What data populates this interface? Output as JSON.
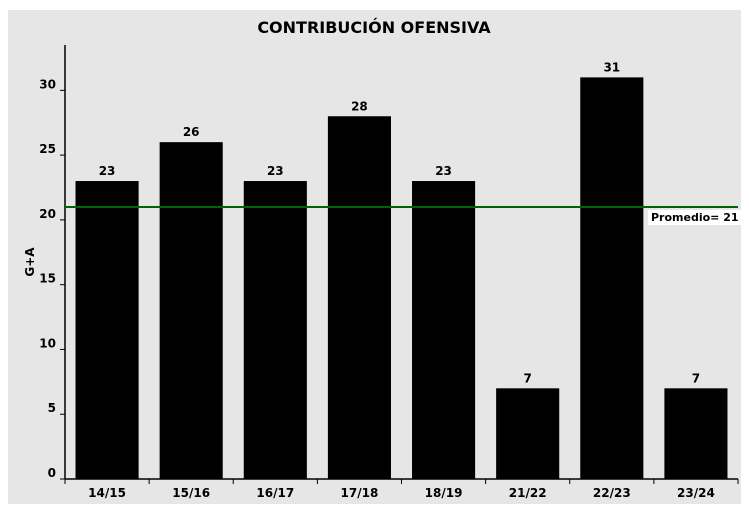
{
  "chart_data": {
    "type": "bar",
    "title": "CONTRIBUCIÓN OFENSIVA",
    "xlabel": "",
    "ylabel": "G+A",
    "categories": [
      "14/15",
      "15/16",
      "16/17",
      "17/18",
      "18/19",
      "21/22",
      "22/23",
      "23/24"
    ],
    "values": [
      23,
      26,
      23,
      28,
      23,
      7,
      31,
      7
    ],
    "ylim": [
      0,
      33.5
    ],
    "yticks": [
      0,
      5,
      10,
      15,
      20,
      25,
      30
    ],
    "grid": false,
    "data_labels": true,
    "reference_line": {
      "value": 21,
      "label": "Promedio= 21"
    },
    "colors": {
      "background": "#e6e6e6",
      "bar": "#000000",
      "reference_line": "#006400",
      "reference_label_bg": "#ffffff"
    }
  }
}
